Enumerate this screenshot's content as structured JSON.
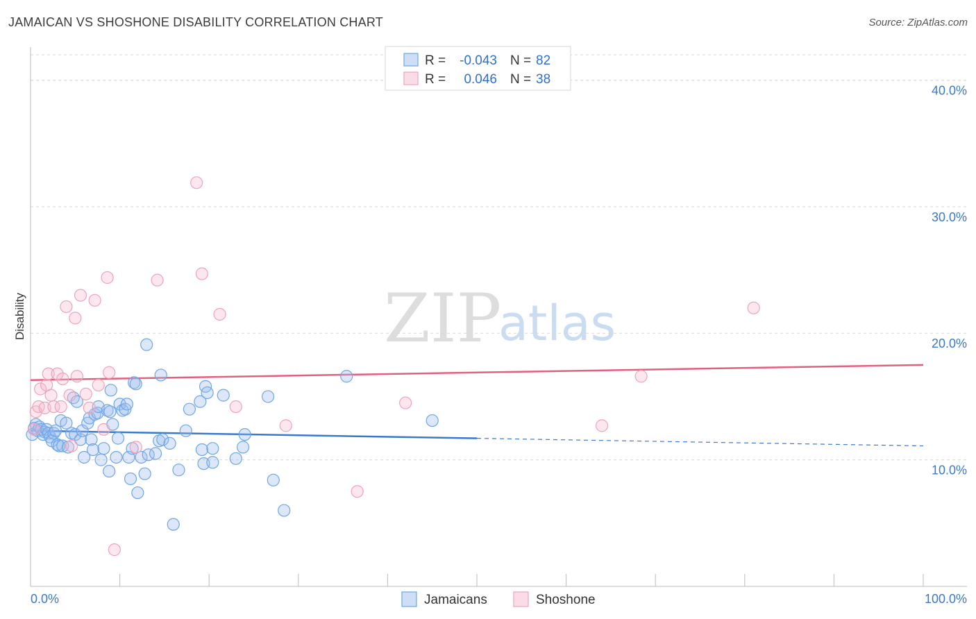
{
  "title": "JAMAICAN VS SHOSHONE DISABILITY CORRELATION CHART",
  "source": "Source: ZipAtlas.com",
  "watermark": {
    "zip": "ZIP",
    "atlas": "atlas"
  },
  "legend": {
    "rows": [
      {
        "r_label": "R =",
        "r_value": "-0.043",
        "n_label": "N =",
        "n_value": "82",
        "color": "#6fa5e6"
      },
      {
        "r_label": "R =",
        "r_value": "0.046",
        "n_label": "N =",
        "n_value": "38",
        "color": "#f0a6bd"
      }
    ]
  },
  "colors": {
    "blue": "#3a78c9",
    "blue_fill": "rgba(155,190,240,0.35)",
    "blue_stroke": "#6fa5e6",
    "pink": "#e0607f",
    "pink_fill": "rgba(245,185,205,0.35)",
    "pink_stroke": "#eea3ba",
    "grid": "#d8d8d8"
  },
  "chart_data": {
    "type": "scatter",
    "title": "JAMAICAN VS SHOSHONE DISABILITY CORRELATION CHART",
    "xlabel": "",
    "ylabel": "Disability",
    "xlim": [
      0,
      100
    ],
    "ylim": [
      0,
      42
    ],
    "x_tick_labels": [
      "0.0%",
      "100.0%"
    ],
    "y_ticks": [
      10,
      20,
      30,
      40
    ],
    "y_tick_labels": [
      "10.0%",
      "20.0%",
      "30.0%",
      "40.0%"
    ],
    "series": [
      {
        "name": "Jamaicans",
        "color": "#6fa5e6",
        "trend": {
          "x0": 0,
          "y0": 12.3,
          "x1": 50,
          "y1": 11.7,
          "x_dash_end": 100,
          "y_dash_end": 11.1
        },
        "points": [
          [
            0.2,
            12.0
          ],
          [
            0.4,
            12.5
          ],
          [
            0.6,
            12.8
          ],
          [
            0.8,
            12.3
          ],
          [
            1.0,
            12.6
          ],
          [
            1.2,
            12.4
          ],
          [
            1.4,
            12.0
          ],
          [
            1.6,
            12.2
          ],
          [
            1.8,
            12.4
          ],
          [
            2.0,
            12.1
          ],
          [
            2.2,
            11.8
          ],
          [
            2.4,
            11.5
          ],
          [
            2.6,
            12.1
          ],
          [
            2.8,
            12.3
          ],
          [
            3.0,
            11.2
          ],
          [
            3.2,
            11.1
          ],
          [
            3.4,
            13.1
          ],
          [
            3.6,
            11.1
          ],
          [
            4.0,
            12.9
          ],
          [
            4.2,
            11.0
          ],
          [
            4.6,
            12.1
          ],
          [
            4.8,
            14.9
          ],
          [
            5.0,
            12.0
          ],
          [
            5.2,
            14.6
          ],
          [
            5.6,
            11.6
          ],
          [
            5.8,
            12.3
          ],
          [
            6.0,
            10.2
          ],
          [
            6.4,
            12.9
          ],
          [
            6.6,
            13.3
          ],
          [
            6.8,
            11.6
          ],
          [
            7.0,
            10.8
          ],
          [
            7.2,
            13.6
          ],
          [
            7.5,
            13.7
          ],
          [
            7.6,
            14.2
          ],
          [
            7.9,
            10.0
          ],
          [
            8.2,
            10.9
          ],
          [
            8.6,
            13.9
          ],
          [
            8.8,
            9.1
          ],
          [
            8.9,
            13.8
          ],
          [
            9.0,
            15.5
          ],
          [
            9.2,
            12.8
          ],
          [
            9.6,
            10.2
          ],
          [
            9.8,
            11.7
          ],
          [
            10.0,
            14.4
          ],
          [
            10.3,
            13.9
          ],
          [
            10.6,
            14.0
          ],
          [
            10.8,
            14.4
          ],
          [
            11.0,
            10.2
          ],
          [
            11.2,
            8.5
          ],
          [
            11.4,
            10.9
          ],
          [
            11.6,
            16.1
          ],
          [
            11.8,
            16.0
          ],
          [
            12.0,
            7.4
          ],
          [
            12.4,
            10.2
          ],
          [
            12.8,
            8.9
          ],
          [
            13.0,
            19.1
          ],
          [
            13.2,
            10.4
          ],
          [
            14.0,
            10.5
          ],
          [
            14.4,
            11.5
          ],
          [
            14.6,
            16.7
          ],
          [
            14.8,
            11.6
          ],
          [
            15.6,
            11.3
          ],
          [
            16.0,
            4.9
          ],
          [
            16.6,
            9.2
          ],
          [
            17.4,
            12.3
          ],
          [
            17.8,
            14.0
          ],
          [
            19.0,
            14.6
          ],
          [
            19.2,
            10.8
          ],
          [
            19.4,
            9.7
          ],
          [
            19.6,
            15.8
          ],
          [
            19.8,
            15.3
          ],
          [
            20.4,
            10.9
          ],
          [
            20.4,
            9.8
          ],
          [
            21.6,
            15.1
          ],
          [
            23.0,
            10.1
          ],
          [
            23.8,
            11.0
          ],
          [
            24.0,
            12.0
          ],
          [
            26.6,
            15.0
          ],
          [
            27.2,
            8.4
          ],
          [
            28.4,
            6.0
          ],
          [
            35.4,
            16.6
          ],
          [
            45.0,
            13.1
          ]
        ]
      },
      {
        "name": "Shoshone",
        "color": "#eea3ba",
        "trend": {
          "x0": 0,
          "y0": 16.3,
          "x1": 100,
          "y1": 17.5
        },
        "points": [
          [
            0.4,
            12.4
          ],
          [
            0.6,
            13.8
          ],
          [
            0.9,
            14.2
          ],
          [
            1.1,
            15.6
          ],
          [
            1.6,
            14.1
          ],
          [
            1.8,
            15.9
          ],
          [
            2.0,
            16.8
          ],
          [
            2.3,
            15.1
          ],
          [
            2.6,
            14.2
          ],
          [
            3.0,
            16.8
          ],
          [
            3.4,
            14.2
          ],
          [
            3.6,
            16.4
          ],
          [
            4.0,
            22.1
          ],
          [
            4.4,
            15.1
          ],
          [
            4.6,
            11.1
          ],
          [
            5.0,
            21.2
          ],
          [
            5.2,
            16.6
          ],
          [
            5.6,
            23.0
          ],
          [
            6.2,
            15.2
          ],
          [
            6.6,
            14.1
          ],
          [
            7.2,
            22.6
          ],
          [
            7.6,
            15.9
          ],
          [
            8.2,
            12.4
          ],
          [
            8.6,
            24.4
          ],
          [
            8.8,
            16.9
          ],
          [
            9.4,
            2.9
          ],
          [
            11.8,
            11.0
          ],
          [
            14.2,
            24.2
          ],
          [
            18.6,
            31.9
          ],
          [
            19.2,
            24.7
          ],
          [
            21.2,
            21.5
          ],
          [
            23.0,
            14.2
          ],
          [
            28.6,
            12.7
          ],
          [
            36.6,
            7.5
          ],
          [
            42.0,
            14.5
          ],
          [
            64.0,
            12.7
          ],
          [
            68.4,
            16.6
          ],
          [
            81.0,
            22.0
          ]
        ]
      }
    ]
  }
}
